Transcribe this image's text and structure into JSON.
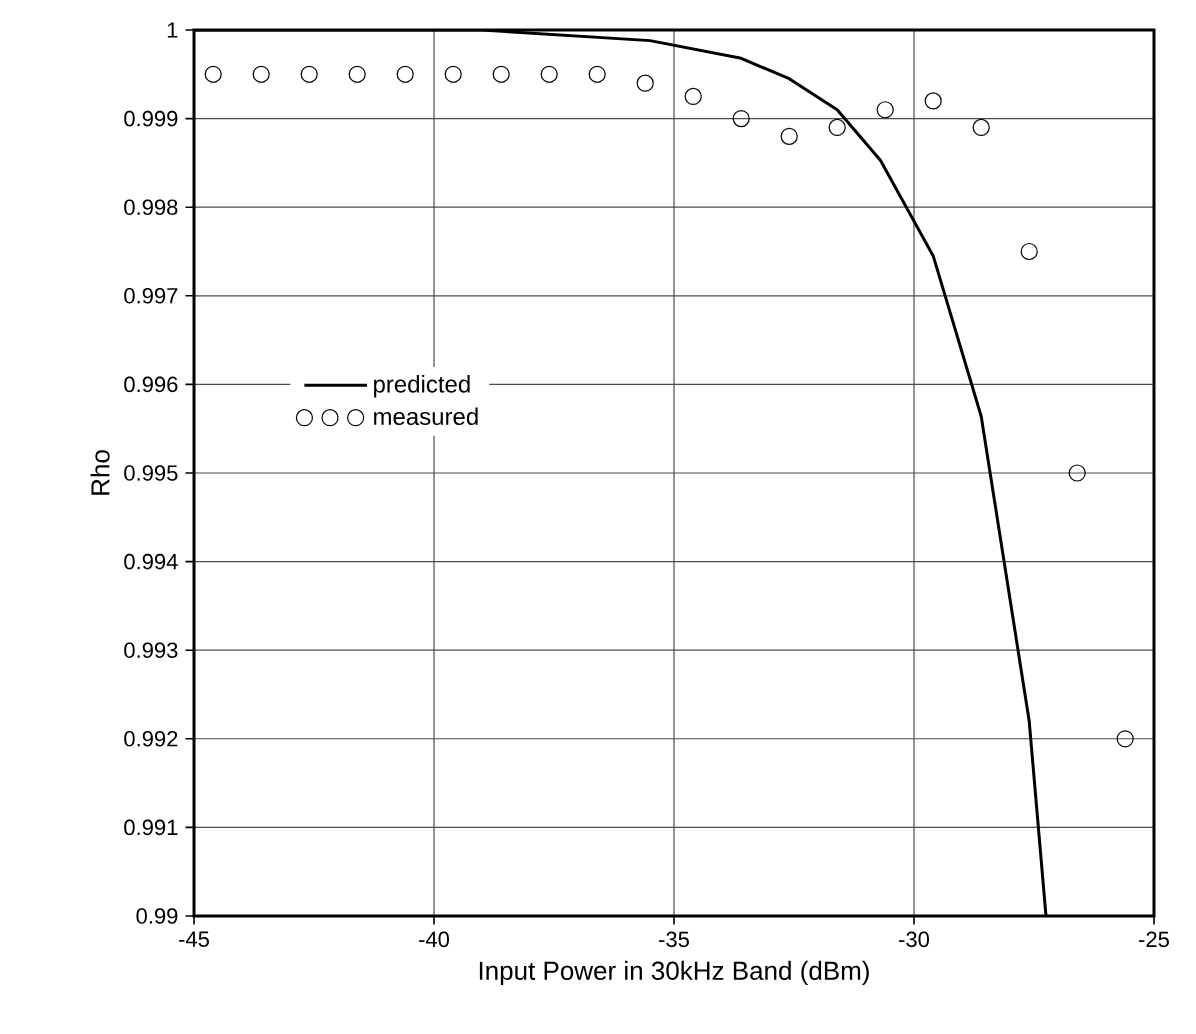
{
  "chart_data": {
    "type": "line",
    "xlabel": "Input Power in 30kHz Band (dBm)",
    "ylabel": "Rho",
    "xlim": [
      -45,
      -25
    ],
    "xticks": [
      -45,
      -40,
      -35,
      -30,
      -25
    ],
    "ylim": [
      0.99,
      1
    ],
    "yticks": [
      0.99,
      0.991,
      0.992,
      0.993,
      0.994,
      0.995,
      0.996,
      0.997,
      0.998,
      0.999,
      1
    ],
    "grid": true,
    "legend": "left",
    "series": [
      {
        "name": "predicted",
        "color": "#000000",
        "marker": "none",
        "line_style": "solid",
        "x": [
          -45,
          -39,
          -35.5,
          -33.6,
          -32.6,
          -31.6,
          -30.7,
          -29.6,
          -28.6,
          -27.6,
          -27.25
        ],
        "values": [
          1,
          1,
          0.99988,
          0.99968,
          0.99945,
          0.9991,
          0.99853,
          0.99745,
          0.99564,
          0.9922,
          0.99
        ]
      },
      {
        "name": "measured",
        "type": "scatter",
        "color": "#000000",
        "marker": "circle",
        "x": [
          -44.6,
          -43.6,
          -42.6,
          -41.6,
          -40.6,
          -39.6,
          -38.6,
          -37.6,
          -36.6,
          -35.6,
          -34.6,
          -33.6,
          -32.6,
          -31.6,
          -30.6,
          -29.6,
          -28.6,
          -27.6,
          -26.6,
          -25.6
        ],
        "values": [
          0.9995,
          0.9995,
          0.9995,
          0.9995,
          0.9995,
          0.9995,
          0.9995,
          0.9995,
          0.9995,
          0.9994,
          0.99925,
          0.999,
          0.9988,
          0.9989,
          0.9991,
          0.9992,
          0.9989,
          0.9975,
          0.995,
          0.992
        ]
      }
    ]
  }
}
